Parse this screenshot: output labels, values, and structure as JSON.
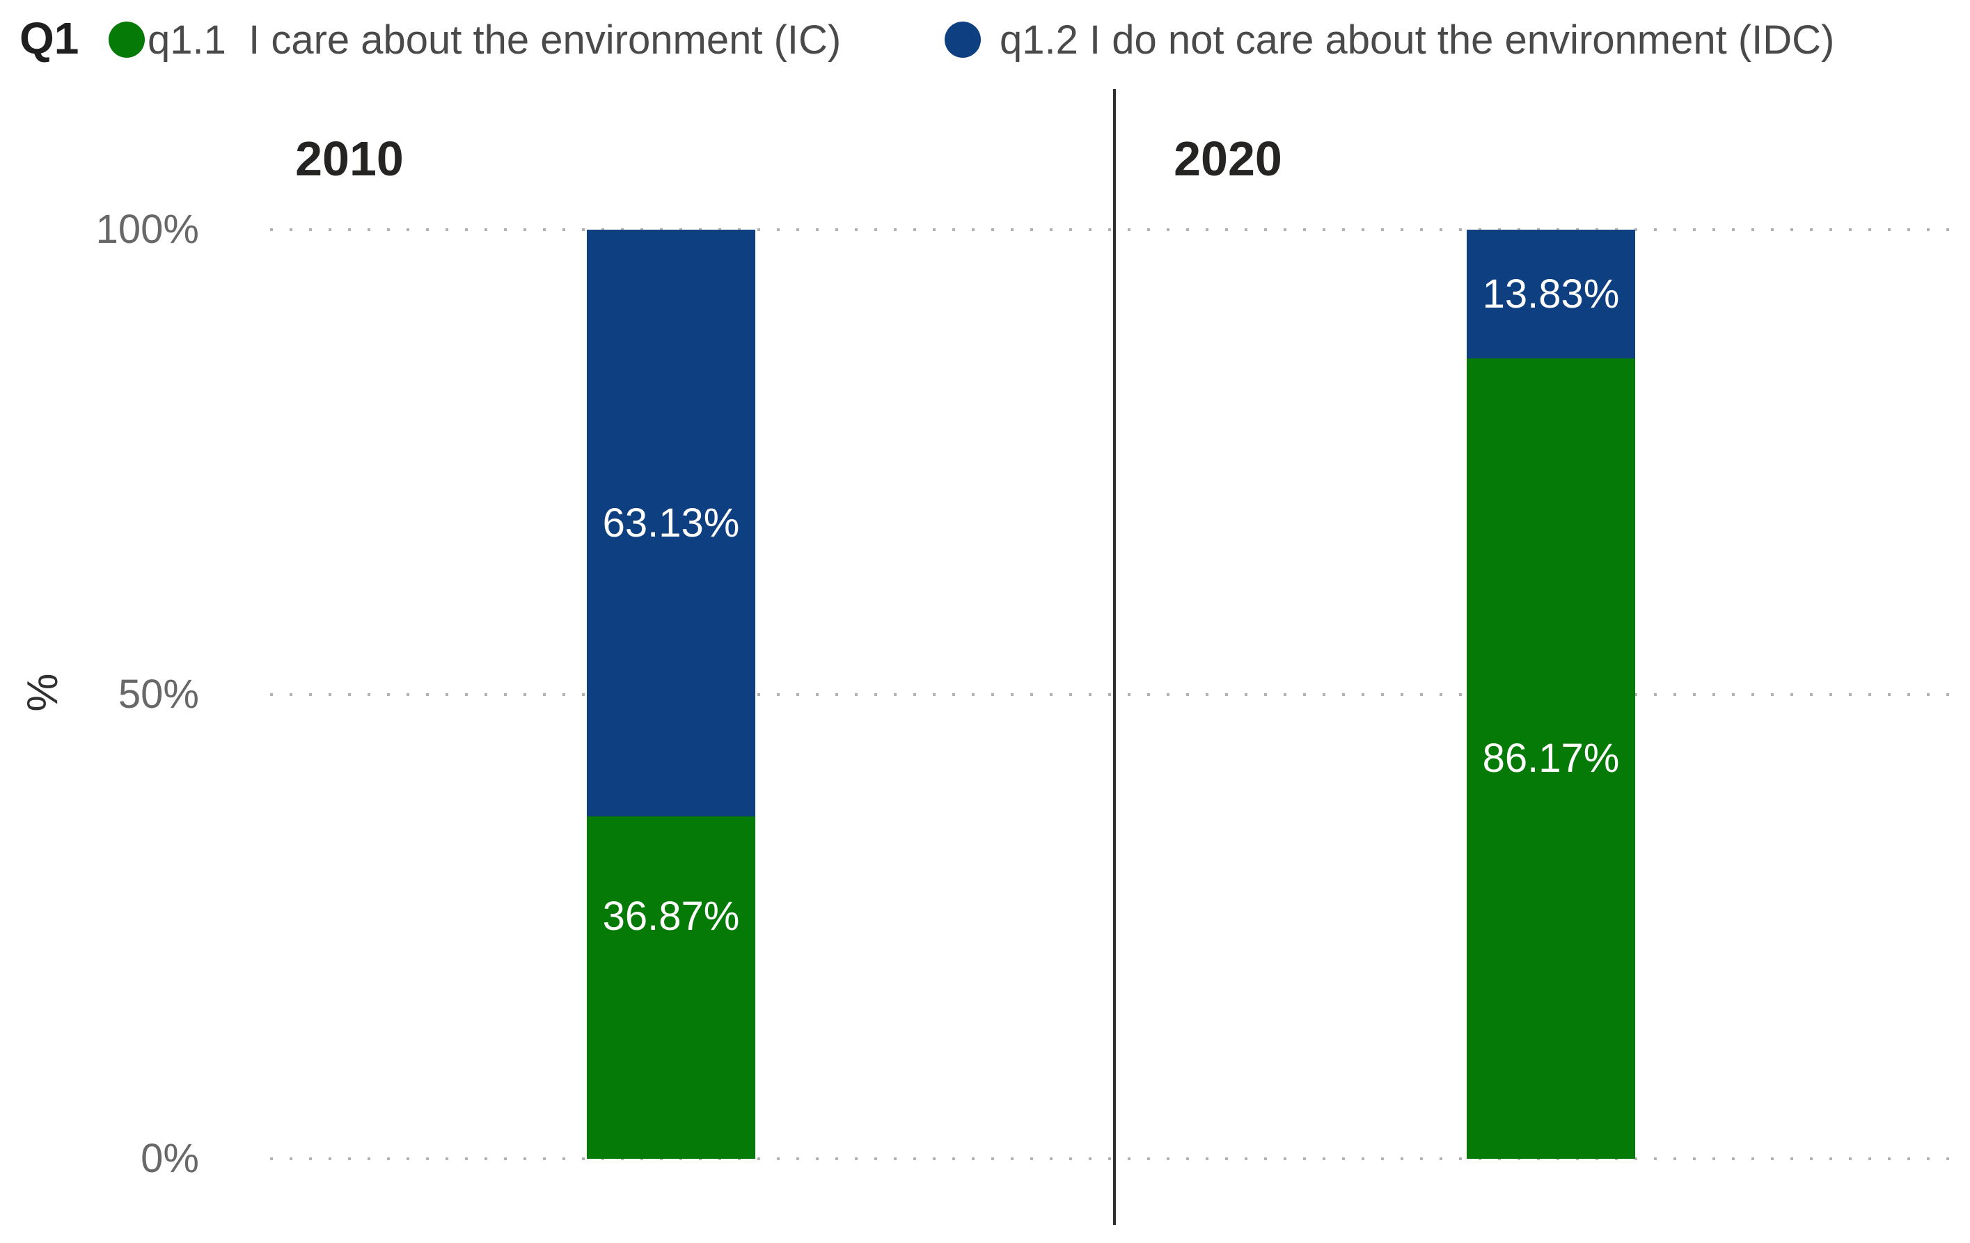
{
  "legend": {
    "title": "Q1",
    "items": [
      {
        "label": "q1.1  I care about the environment (IC)",
        "color": "#067a06"
      },
      {
        "label": "q1.2 I do not care about the environment (IDC)",
        "color": "#0e3f80"
      }
    ]
  },
  "chart_data": {
    "type": "bar",
    "stacked": true,
    "orientation": "vertical",
    "categories": [
      "2010",
      "2020"
    ],
    "series": [
      {
        "name": "q1.1 I care about the environment (IC)",
        "color": "#067a06",
        "values": [
          36.87,
          86.17
        ],
        "labels": [
          "36.87%",
          "86.17%"
        ]
      },
      {
        "name": "q1.2 I do not care about the environment (IDC)",
        "color": "#0e3f80",
        "values": [
          63.13,
          13.83
        ],
        "labels": [
          "63.13%",
          "13.83%"
        ]
      }
    ],
    "title": "Q1",
    "xlabel": "",
    "ylabel": "%",
    "ylim": [
      0,
      100
    ],
    "yticks": [
      "100%",
      "50%",
      "0%"
    ],
    "grid": "horizontal dotted",
    "gridline_color": "#b2b2b2",
    "data_label_color": "#ffffff",
    "panel_divider": true,
    "legend_position": "top"
  }
}
